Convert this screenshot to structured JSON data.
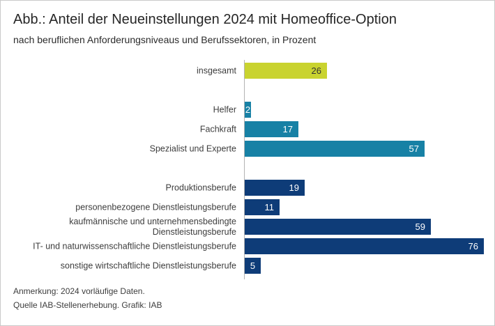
{
  "figure": {
    "title": "Abb.: Anteil der Neueinstellungen 2024 mit Homeoffice-Option",
    "subtitle": "nach beruflichen Anforderungsniveaus und Berufssektoren, in Prozent",
    "note": "Anmerkung: 2024 vorläufige Daten.",
    "source": "Quelle IAB-Stellenerhebung. Grafik: IAB"
  },
  "colors": {
    "total_bar": "#c9d32f",
    "anforderungsniveau_bar": "#1781a5",
    "berufssektor_bar": "#0e3c78",
    "value_on_total": "#333333",
    "value_on_dark": "#ffffff",
    "axis_line": "#b3b3b3",
    "label_text": "#3d3d3d",
    "frame_border": "#c9c9c9"
  },
  "chart_data": {
    "type": "bar",
    "orientation": "horizontal",
    "title": "Abb.: Anteil der Neueinstellungen 2024 mit Homeoffice-Option",
    "subtitle": "nach beruflichen Anforderungsniveaus und Berufssektoren, in Prozent",
    "unit": "Prozent",
    "xlim": [
      0,
      77
    ],
    "grid": false,
    "legend": false,
    "bars": [
      {
        "label": "insgesamt",
        "value": 26,
        "group": "insgesamt"
      },
      {
        "label": "Helfer",
        "value": 2,
        "group": "Anforderungsniveau"
      },
      {
        "label": "Fachkraft",
        "value": 17,
        "group": "Anforderungsniveau"
      },
      {
        "label": "Spezialist und Experte",
        "value": 57,
        "group": "Anforderungsniveau"
      },
      {
        "label": "Produktionsberufe",
        "value": 19,
        "group": "Berufssektor"
      },
      {
        "label": "personenbezogene Dienstleistungsberufe",
        "value": 11,
        "group": "Berufssektor"
      },
      {
        "label": "kaufmännische und unternehmensbedingte Dienstleistungsberufe",
        "value": 59,
        "group": "Berufssektor"
      },
      {
        "label": "IT- und naturwissenschaftliche Dienstleistungsberufe",
        "value": 76,
        "group": "Berufssektor"
      },
      {
        "label": "sonstige wirtschaftliche Dienstleistungsberufe",
        "value": 5,
        "group": "Berufssektor"
      }
    ]
  }
}
